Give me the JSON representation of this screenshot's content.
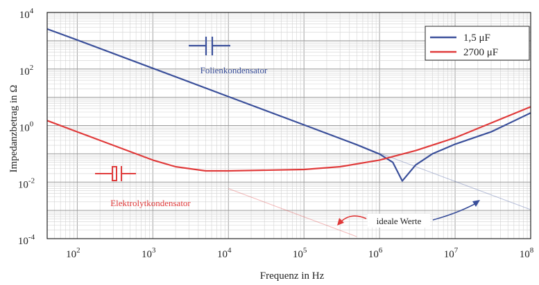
{
  "chart_data": {
    "type": "line",
    "xlabel": "Frequenz in Hz",
    "ylabel": "Impedanzbetrag in Ω",
    "x_scale": "log",
    "y_scale": "log",
    "xlim": [
      40,
      100000000
    ],
    "ylim": [
      0.0001,
      10000
    ],
    "grid": true,
    "legend_position": "top-right",
    "x_ticks": [
      {
        "base": "10",
        "exp": "2",
        "value": 100
      },
      {
        "base": "10",
        "exp": "3",
        "value": 1000
      },
      {
        "base": "10",
        "exp": "4",
        "value": 10000
      },
      {
        "base": "10",
        "exp": "5",
        "value": 100000
      },
      {
        "base": "10",
        "exp": "6",
        "value": 1000000
      },
      {
        "base": "10",
        "exp": "7",
        "value": 10000000
      },
      {
        "base": "10",
        "exp": "8",
        "value": 100000000
      }
    ],
    "y_ticks": [
      {
        "base": "10",
        "exp": "-4",
        "value": 0.0001
      },
      {
        "base": "10",
        "exp": "-2",
        "value": 0.01
      },
      {
        "base": "10",
        "exp": "0",
        "value": 1
      },
      {
        "base": "10",
        "exp": "2",
        "value": 100
      },
      {
        "base": "10",
        "exp": "4",
        "value": 10000
      }
    ],
    "series": [
      {
        "name": "1,5 μF",
        "color": "#3a4f9a",
        "x": [
          40,
          100,
          1000,
          10000,
          100000,
          500000,
          1000000,
          1500000,
          2000000,
          3000000,
          5000000,
          10000000,
          30000000,
          100000000
        ],
        "y": [
          2600,
          1060,
          106,
          10.6,
          1.06,
          0.21,
          0.098,
          0.05,
          0.011,
          0.04,
          0.1,
          0.22,
          0.6,
          2.8
        ]
      },
      {
        "name": "2700 μF",
        "color": "#e03a3a",
        "x": [
          40,
          100,
          200,
          500,
          1000,
          2000,
          5000,
          10000,
          100000,
          300000,
          1000000,
          3000000,
          10000000,
          100000000
        ],
        "y": [
          1.5,
          0.6,
          0.3,
          0.12,
          0.06,
          0.035,
          0.025,
          0.025,
          0.028,
          0.035,
          0.06,
          0.13,
          0.37,
          4.6
        ]
      }
    ],
    "ideal_lines": [
      {
        "series": "1,5 μF",
        "x": [
          1000000,
          100000000
        ],
        "y": [
          0.106,
          0.00106
        ]
      },
      {
        "series": "2700 μF",
        "x": [
          10000,
          500000
        ],
        "y": [
          0.0059,
          0.000118
        ]
      }
    ],
    "annotations": {
      "film": "Folienkondensator",
      "electrolytic": "Elektrolytkondensator",
      "ideal": "ideale Werte"
    }
  }
}
